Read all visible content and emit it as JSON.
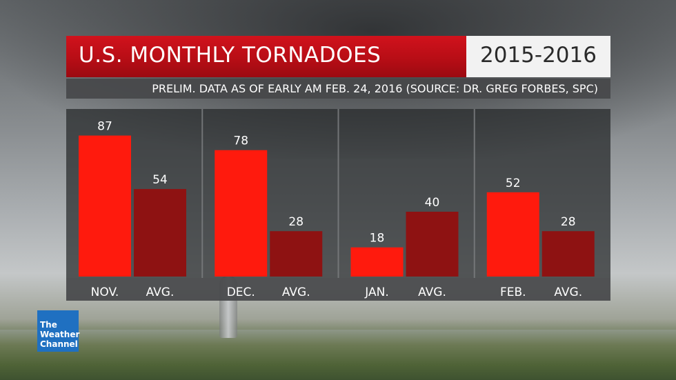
{
  "header": {
    "title": "U.S. MONTHLY TORNADOES",
    "years": "2015-2016",
    "subtitle": "PRELIM. DATA AS OF EARLY AM FEB. 24, 2016 (SOURCE: DR. GREG FORBES, SPC)"
  },
  "logo": {
    "line1": "The",
    "line2": "Weather",
    "line3": "Channel"
  },
  "colors": {
    "actual": "#ff1a0d",
    "average": "#8e1212",
    "value_label": "#ffffff",
    "title_red": "#c81018"
  },
  "chart_data": {
    "type": "bar",
    "title": "U.S. MONTHLY TORNADOES",
    "ylim": [
      0,
      100
    ],
    "grid": false,
    "groups": [
      {
        "bars": [
          {
            "label": "NOV.",
            "value": 87,
            "kind": "actual"
          },
          {
            "label": "AVG.",
            "value": 54,
            "kind": "average"
          }
        ]
      },
      {
        "bars": [
          {
            "label": "DEC.",
            "value": 78,
            "kind": "actual"
          },
          {
            "label": "AVG.",
            "value": 28,
            "kind": "average"
          }
        ]
      },
      {
        "bars": [
          {
            "label": "JAN.",
            "value": 18,
            "kind": "actual"
          },
          {
            "label": "AVG.",
            "value": 40,
            "kind": "average"
          }
        ]
      },
      {
        "bars": [
          {
            "label": "FEB.",
            "value": 52,
            "kind": "actual"
          },
          {
            "label": "AVG.",
            "value": 28,
            "kind": "average"
          }
        ]
      }
    ]
  }
}
